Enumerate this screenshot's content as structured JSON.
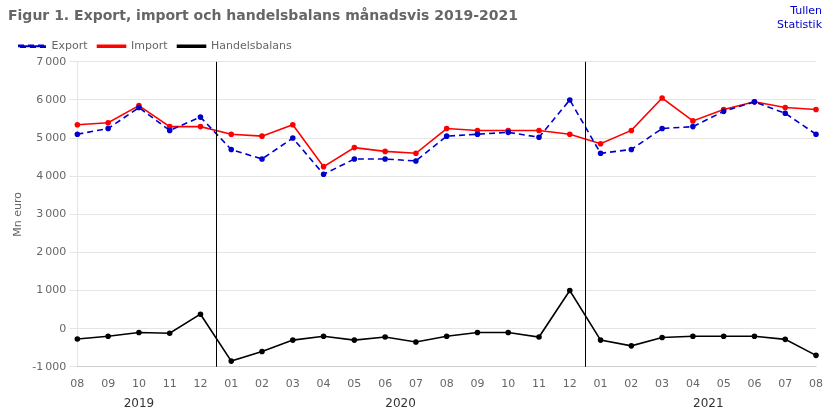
{
  "chart_data": {
    "type": "line",
    "title": "Figur 1. Export, import och handelsbalans månadsvis 2019-2021",
    "ylabel": "Mn euro",
    "categories": [
      "08",
      "09",
      "10",
      "11",
      "12",
      "01",
      "02",
      "03",
      "04",
      "05",
      "06",
      "07",
      "08",
      "09",
      "10",
      "11",
      "12",
      "01",
      "02",
      "03",
      "04",
      "05",
      "06",
      "07",
      "08"
    ],
    "series": [
      {
        "name": "Export",
        "color": "#0000CD",
        "line_style": "dashed",
        "marker": "o",
        "values": [
          5100,
          5250,
          5800,
          5200,
          5550,
          4700,
          4450,
          5000,
          4050,
          4450,
          4450,
          4400,
          5050,
          5100,
          5150,
          5020,
          6000,
          4600,
          4700,
          5250,
          5300,
          5700,
          5950,
          5650,
          5100
        ]
      },
      {
        "name": "Import",
        "color": "#FF0000",
        "line_style": "solid",
        "marker": "o",
        "values": [
          5350,
          5400,
          5850,
          5300,
          5300,
          5100,
          5050,
          5350,
          4250,
          4750,
          4650,
          4600,
          5250,
          5200,
          5200,
          5200,
          5100,
          4850,
          5200,
          6050,
          5450,
          5750,
          5950,
          5800,
          5750
        ]
      },
      {
        "name": "Handelsbalans",
        "color": "#000000",
        "line_style": "solid",
        "marker": "o",
        "values": [
          -270,
          -200,
          -100,
          -120,
          380,
          -850,
          -600,
          -300,
          -200,
          -300,
          -220,
          -350,
          -200,
          -100,
          -100,
          -220,
          1000,
          -300,
          -450,
          -230,
          -200,
          -200,
          -200,
          -280,
          -700
        ]
      }
    ],
    "ylim": [
      -1000,
      7000
    ],
    "yticks": [
      {
        "value": -1000,
        "label": "-1 000"
      },
      0,
      {
        "value": 1000,
        "label": "1 000"
      },
      {
        "value": 2000,
        "label": "2 000"
      },
      {
        "value": 3000,
        "label": "3 000"
      },
      {
        "value": 4000,
        "label": "4 000"
      },
      {
        "value": 5000,
        "label": "5 000"
      },
      {
        "value": 6000,
        "label": "6 000"
      },
      {
        "value": 7000,
        "label": "7 000"
      }
    ],
    "grid": true,
    "legend": "upper left",
    "annotations": [
      {
        "text": "2019",
        "start": 0,
        "end": 4
      },
      {
        "text": "2020",
        "start": 5,
        "end": 16
      },
      {
        "text": "2021",
        "start": 17,
        "end": 24
      },
      {
        "text": "Tullen\nStatistik",
        "color": "#0000CD"
      }
    ]
  }
}
